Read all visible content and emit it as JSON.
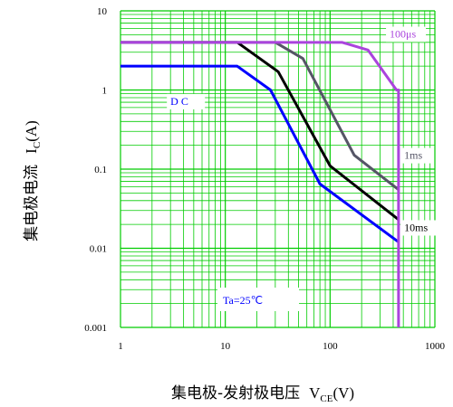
{
  "chart_data": {
    "type": "line",
    "xscale": "log",
    "yscale": "log",
    "xlim": [
      1,
      1000
    ],
    "ylim": [
      0.001,
      10
    ],
    "x_tick_labels": [
      "1",
      "10",
      "100",
      "1000"
    ],
    "x_tick_values": [
      1,
      10,
      100,
      1000
    ],
    "y_tick_labels": [
      "0.001",
      "0.01",
      "0.1",
      "1",
      "10"
    ],
    "y_tick_values": [
      0.001,
      0.01,
      0.1,
      1,
      10
    ],
    "xlabel": {
      "prefix": "集电极-发射极电压",
      "symbol": "V",
      "sub": "CE",
      "unit": "(V)"
    },
    "ylabel": {
      "prefix": "集电极电流",
      "symbol": "I",
      "sub": "C",
      "unit": "(A)"
    },
    "grid": true,
    "annotation": "Ta=25℃",
    "colors": {
      "grid": "#00cc00",
      "background": "#ffffff"
    },
    "series": [
      {
        "name": "DC",
        "color": "#0000ff",
        "x": [
          1,
          13,
          27,
          80,
          450
        ],
        "y": [
          2,
          2,
          1,
          0.065,
          0.012
        ]
      },
      {
        "name": "10ms",
        "color": "#000000",
        "x": [
          1,
          13,
          32,
          100,
          450
        ],
        "y": [
          4,
          4,
          1.7,
          0.11,
          0.023
        ]
      },
      {
        "name": "1ms",
        "color": "#555566",
        "x": [
          1,
          30,
          55,
          170,
          450
        ],
        "y": [
          4,
          4,
          2.5,
          0.15,
          0.055
        ]
      },
      {
        "name": "100μs",
        "color": "#aa44dd",
        "x": [
          1,
          130,
          230,
          430,
          450,
          450
        ],
        "y": [
          4,
          4,
          3.2,
          1,
          1,
          0.001
        ]
      }
    ]
  }
}
